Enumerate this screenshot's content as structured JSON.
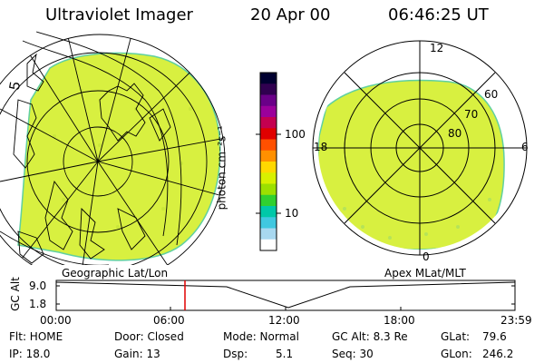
{
  "header": {
    "instrument": "Ultraviolet Imager",
    "date": "20 Apr 00",
    "time": "06:46:25 UT"
  },
  "left_panel": {
    "label": "Geographic Lat/Lon"
  },
  "right_panel": {
    "label": "Apex MLat/MLT",
    "mlt_labels": [
      "12",
      "18",
      "6",
      "0"
    ],
    "mlat_labels": [
      "60",
      "70",
      "80"
    ]
  },
  "colorbar": {
    "unit_label": "photon cm⁻²s⁻¹",
    "tick_labels": [
      "100",
      "10"
    ],
    "colors": [
      "#000030",
      "#300050",
      "#6a0088",
      "#9b009b",
      "#c40050",
      "#e00000",
      "#ff5000",
      "#ff9000",
      "#ffd800",
      "#d8f000",
      "#9ce000",
      "#30d030",
      "#00c8a8",
      "#40c8e0",
      "#a8d8f0",
      "#ffffff"
    ]
  },
  "timeline": {
    "y_label": "GC Alt",
    "y_ticks": [
      "9.0",
      "1.8"
    ],
    "x_ticks": [
      "00:00",
      "06:00",
      "12:00",
      "18:00",
      "23:59"
    ],
    "marker_time": "06:46"
  },
  "status": {
    "flt": "Flt: HOME",
    "ip": "IP: 18.0",
    "door": "Door: Closed",
    "gain": "Gain: 13",
    "mode": "Mode: Normal",
    "dsp_label": "Dsp:",
    "dsp_value": "5.1",
    "gcalt": "GC Alt: 8.3 Re",
    "seq": "Seq: 30",
    "glat_label": "GLat:",
    "glat_value": "79.6",
    "glon_label": "GLon:",
    "glon_value": "246.2"
  },
  "colors": {
    "emission": "#d8f040",
    "emission_edge": "#60d0a0",
    "marker": "#e00000"
  }
}
